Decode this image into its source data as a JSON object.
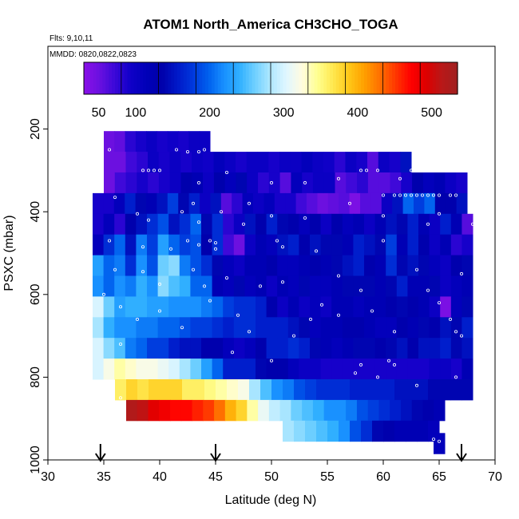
{
  "chart_data": {
    "type": "heatmap",
    "title": "ATOM1 North_America CH3CHO_TOGA",
    "notes": [
      "Flts: 9,10,11",
      "MMDD: 0820,0822,0823"
    ],
    "xlabel": "Latitude (deg N)",
    "ylabel": "PSXC (mbar)",
    "xlim": [
      30,
      70
    ],
    "ylim": [
      1000,
      0
    ],
    "xticks": [
      "30",
      "35",
      "40",
      "45",
      "50",
      "55",
      "60",
      "65",
      "70"
    ],
    "yticks": [
      "200",
      "400",
      "600",
      "800",
      "1000"
    ],
    "colorbar": {
      "range": [
        30,
        535
      ],
      "tick_labels": [
        "50",
        "100",
        "200",
        "300",
        "400",
        "500"
      ],
      "colors": [
        "#8a10e8",
        "#6a10e0",
        "#3a08d8",
        "#1000c8",
        "#0000b8",
        "#0000aa",
        "#0018c8",
        "#0038dc",
        "#0060ee",
        "#1890ff",
        "#30b0ff",
        "#70d0ff",
        "#b0e8ff",
        "#e0f6ff",
        "#fffce0",
        "#ffff90",
        "#ffe850",
        "#ffc818",
        "#ffa000",
        "#ff7000",
        "#ff3800",
        "#ff0000",
        "#dd0000",
        "#b81818",
        "#a02020"
      ]
    },
    "arrows_latitude": [
      34.7,
      45,
      67
    ],
    "rows": [
      {
        "p": 230,
        "lat0": 35,
        "lat1": 44.5,
        "values": [
          50,
          55,
          80,
          90,
          100,
          90,
          95,
          90,
          100,
          100
        ]
      },
      {
        "p": 280,
        "lat0": 35,
        "lat1": 62.5,
        "values": [
          50,
          50,
          70,
          80,
          100,
          90,
          100,
          90,
          100,
          95,
          110,
          100,
          90,
          100,
          100,
          90,
          100,
          100,
          110,
          100,
          95,
          80,
          100,
          90,
          60,
          100,
          90,
          150
        ]
      },
      {
        "p": 330,
        "lat0": 35,
        "lat1": 67.5,
        "values": [
          50,
          70,
          80,
          90,
          80,
          90,
          100,
          130,
          120,
          100,
          130,
          110,
          140,
          100,
          80,
          90,
          60,
          110,
          90,
          100,
          100,
          60,
          70,
          80,
          60,
          60,
          70,
          90,
          130,
          110,
          120,
          100,
          90
        ]
      },
      {
        "p": 380,
        "lat0": 34,
        "lat1": 67.5,
        "values": [
          90,
          90,
          110,
          160,
          140,
          120,
          150,
          180,
          140,
          160,
          100,
          150,
          60,
          80,
          110,
          100,
          110,
          90,
          90,
          70,
          60,
          50,
          55,
          60,
          40,
          60,
          60,
          100,
          150,
          200,
          180,
          200,
          130,
          130,
          150
        ]
      },
      {
        "p": 430,
        "lat0": 34,
        "lat1": 68,
        "values": [
          90,
          110,
          80,
          130,
          150,
          170,
          190,
          150,
          170,
          200,
          140,
          170,
          80,
          100,
          150,
          130,
          160,
          140,
          130,
          110,
          130,
          100,
          130,
          110,
          120,
          100,
          120,
          150,
          140,
          160,
          120,
          100,
          160,
          120,
          60
        ]
      },
      {
        "p": 480,
        "lat0": 34,
        "lat1": 68,
        "values": [
          110,
          170,
          200,
          150,
          210,
          180,
          230,
          200,
          180,
          190,
          130,
          170,
          70,
          50,
          100,
          120,
          110,
          150,
          160,
          130,
          150,
          140,
          140,
          120,
          160,
          150,
          140,
          180,
          120,
          160,
          130,
          100,
          120,
          80,
          90
        ]
      },
      {
        "p": 530,
        "lat0": 34,
        "lat1": 68,
        "values": [
          230,
          200,
          210,
          170,
          220,
          190,
          260,
          270,
          210,
          190,
          170,
          140,
          110,
          100,
          120,
          120,
          130,
          110,
          110,
          120,
          130,
          120,
          140,
          150,
          160,
          130,
          120,
          170,
          140,
          150,
          140,
          110,
          100,
          130,
          140
        ]
      },
      {
        "p": 580,
        "lat0": 34,
        "lat1": 68,
        "values": [
          220,
          200,
          220,
          210,
          240,
          220,
          270,
          250,
          240,
          200,
          200,
          120,
          110,
          140,
          110,
          120,
          100,
          120,
          110,
          140,
          110,
          110,
          120,
          140,
          140,
          140,
          120,
          140,
          160,
          120,
          120,
          140,
          100,
          110,
          120
        ]
      },
      {
        "p": 630,
        "lat0": 34,
        "lat1": 68,
        "values": [
          300,
          260,
          230,
          240,
          240,
          230,
          230,
          220,
          220,
          220,
          210,
          200,
          180,
          170,
          170,
          160,
          130,
          100,
          120,
          100,
          110,
          100,
          120,
          120,
          110,
          120,
          120,
          130,
          140,
          130,
          120,
          100,
          40,
          110,
          140
        ]
      },
      {
        "p": 680,
        "lat0": 34,
        "lat1": 68,
        "values": [
          280,
          240,
          220,
          220,
          210,
          210,
          200,
          200,
          190,
          180,
          180,
          170,
          160,
          170,
          170,
          160,
          160,
          160,
          150,
          140,
          110,
          120,
          120,
          130,
          130,
          120,
          110,
          110,
          130,
          120,
          140,
          130,
          150,
          140,
          160
        ]
      },
      {
        "p": 730,
        "lat0": 34,
        "lat1": 68,
        "values": [
          300,
          270,
          250,
          210,
          200,
          180,
          180,
          160,
          150,
          150,
          130,
          130,
          110,
          100,
          110,
          130,
          160,
          160,
          170,
          160,
          140,
          120,
          110,
          120,
          140,
          140,
          130,
          140,
          150,
          130,
          150,
          150,
          160,
          140,
          150
        ]
      },
      {
        "p": 780,
        "lat0": 34,
        "lat1": 68,
        "values": [
          300,
          320,
          340,
          330,
          320,
          320,
          310,
          300,
          280,
          260,
          230,
          200,
          160,
          160,
          160,
          140,
          130,
          130,
          110,
          100,
          100,
          90,
          90,
          90,
          90,
          90,
          90,
          90,
          90,
          90,
          90,
          100,
          100,
          90,
          120
        ]
      },
      {
        "p": 830,
        "lat0": 36,
        "lat1": 68,
        "values": [
          360,
          380,
          370,
          380,
          380,
          380,
          360,
          360,
          350,
          340,
          330,
          320,
          280,
          250,
          220,
          210,
          190,
          180,
          170,
          170,
          170,
          160,
          160,
          160,
          160,
          150,
          150,
          150,
          140,
          140,
          140,
          140
        ]
      },
      {
        "p": 880,
        "lat0": 37,
        "lat1": 65.5,
        "values": [
          520,
          510,
          490,
          480,
          470,
          470,
          460,
          450,
          430,
          400,
          380,
          340,
          310,
          290,
          280,
          260,
          250,
          240,
          220,
          220,
          210,
          190,
          180,
          170,
          160,
          150,
          140,
          130,
          120
        ]
      },
      {
        "p": 930,
        "lat0": 51,
        "lat1": 65,
        "values": [
          280,
          270,
          260,
          250,
          240,
          220,
          190,
          170,
          140,
          130,
          120,
          120,
          120,
          110
        ]
      },
      {
        "p": 960,
        "lat0": 64.5,
        "lat1": 65.5,
        "values": [
          110
        ]
      }
    ],
    "white_point_samples": [
      [
        35.5,
        250
      ],
      [
        41.5,
        250
      ],
      [
        42.5,
        255
      ],
      [
        43.5,
        255
      ],
      [
        44,
        250
      ],
      [
        38.5,
        300
      ],
      [
        39,
        300
      ],
      [
        39.5,
        300
      ],
      [
        40,
        300
      ],
      [
        46,
        305
      ],
      [
        58,
        300
      ],
      [
        58.5,
        300
      ],
      [
        59.5,
        300
      ],
      [
        62.5,
        300
      ],
      [
        43.5,
        330
      ],
      [
        56,
        320
      ],
      [
        61.5,
        320
      ],
      [
        50,
        330
      ],
      [
        53,
        330
      ],
      [
        60,
        360
      ],
      [
        61,
        360
      ],
      [
        61.5,
        360
      ],
      [
        62,
        360
      ],
      [
        62.5,
        360
      ],
      [
        63,
        360
      ],
      [
        63.5,
        360
      ],
      [
        64,
        360
      ],
      [
        64.5,
        360
      ],
      [
        65,
        360
      ],
      [
        66,
        360
      ],
      [
        66.5,
        360
      ],
      [
        36,
        365
      ],
      [
        43,
        380
      ],
      [
        48,
        380
      ],
      [
        57,
        380
      ],
      [
        38,
        405
      ],
      [
        42,
        400
      ],
      [
        45.5,
        400
      ],
      [
        50,
        410
      ],
      [
        53,
        415
      ],
      [
        60,
        410
      ],
      [
        65,
        405
      ],
      [
        39,
        420
      ],
      [
        43.5,
        425
      ],
      [
        47.5,
        430
      ],
      [
        64,
        430
      ],
      [
        68,
        430
      ],
      [
        35.5,
        470
      ],
      [
        42.5,
        470
      ],
      [
        43.5,
        480
      ],
      [
        44.5,
        470
      ],
      [
        45,
        475
      ],
      [
        50.5,
        470
      ],
      [
        60,
        470
      ],
      [
        38.5,
        485
      ],
      [
        41,
        490
      ],
      [
        45,
        490
      ],
      [
        51,
        485
      ],
      [
        54,
        495
      ],
      [
        36,
        540
      ],
      [
        38.5,
        545
      ],
      [
        43,
        540
      ],
      [
        46,
        560
      ],
      [
        51,
        570
      ],
      [
        56,
        555
      ],
      [
        63,
        540
      ],
      [
        67,
        550
      ],
      [
        40,
        575
      ],
      [
        44,
        580
      ],
      [
        49,
        580
      ],
      [
        58,
        590
      ],
      [
        64,
        590
      ],
      [
        35,
        600
      ],
      [
        44.5,
        615
      ],
      [
        54.5,
        625
      ],
      [
        59,
        640
      ],
      [
        65,
        620
      ],
      [
        36.5,
        630
      ],
      [
        40,
        640
      ],
      [
        47,
        650
      ],
      [
        53.5,
        660
      ],
      [
        56,
        650
      ],
      [
        66,
        660
      ],
      [
        38,
        660
      ],
      [
        42,
        680
      ],
      [
        48,
        690
      ],
      [
        52,
        700
      ],
      [
        61,
        690
      ],
      [
        66.5,
        690
      ],
      [
        67,
        700
      ],
      [
        36.5,
        720
      ],
      [
        46.5,
        740
      ],
      [
        50,
        760
      ],
      [
        58,
        770
      ],
      [
        60.5,
        760
      ],
      [
        61,
        770
      ],
      [
        57.5,
        790
      ],
      [
        59.5,
        800
      ],
      [
        63,
        820
      ],
      [
        66.5,
        800
      ],
      [
        36.5,
        850
      ],
      [
        64.5,
        950
      ],
      [
        65,
        955
      ]
    ]
  }
}
